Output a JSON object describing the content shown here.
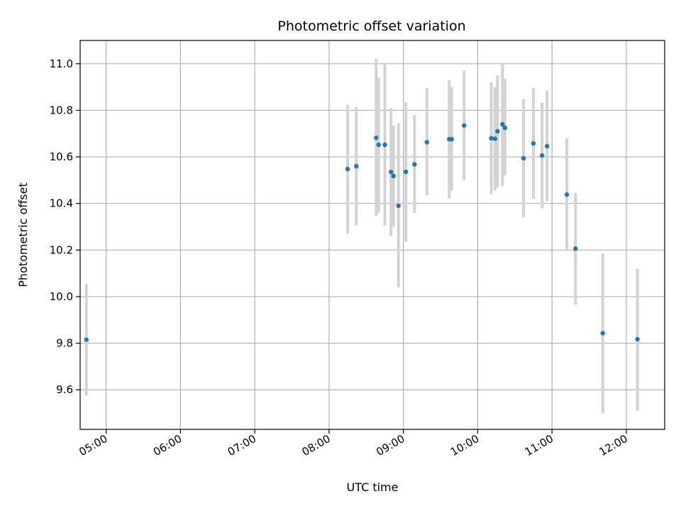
{
  "chart_data": {
    "type": "scatter",
    "title": "Photometric offset variation",
    "xlabel": "UTC time",
    "ylabel": "Photometric offset",
    "grid": true,
    "x_axis_kind": "time-of-day",
    "xlim": [
      "04:39",
      "12:31"
    ],
    "ylim": [
      9.43,
      11.1
    ],
    "x_ticks": [
      "05:00",
      "06:00",
      "07:00",
      "08:00",
      "09:00",
      "10:00",
      "11:00",
      "12:00"
    ],
    "y_ticks": [
      "9.6",
      "9.8",
      "10.0",
      "10.2",
      "10.4",
      "10.6",
      "10.8",
      "11.0"
    ],
    "colors": {
      "point": "#1f77b4",
      "error_bar": "#d3d3d3",
      "grid": "#b0b0b0"
    },
    "series": [
      {
        "points": [
          {
            "x": "04:44",
            "y": 9.815,
            "lo": 9.575,
            "hi": 10.055
          },
          {
            "x": "08:15",
            "y": 10.548,
            "lo": 10.27,
            "hi": 10.825
          },
          {
            "x": "08:22",
            "y": 10.56,
            "lo": 10.305,
            "hi": 10.815
          },
          {
            "x": "08:38",
            "y": 10.682,
            "lo": 10.345,
            "hi": 11.022
          },
          {
            "x": "08:40",
            "y": 10.652,
            "lo": 10.36,
            "hi": 10.94
          },
          {
            "x": "08:45",
            "y": 10.652,
            "lo": 10.305,
            "hi": 11.0
          },
          {
            "x": "08:50",
            "y": 10.535,
            "lo": 10.26,
            "hi": 10.81
          },
          {
            "x": "08:52",
            "y": 10.518,
            "lo": 10.3,
            "hi": 10.735
          },
          {
            "x": "08:56",
            "y": 10.39,
            "lo": 10.04,
            "hi": 10.745
          },
          {
            "x": "09:02",
            "y": 10.536,
            "lo": 10.235,
            "hi": 10.835
          },
          {
            "x": "09:09",
            "y": 10.568,
            "lo": 10.36,
            "hi": 10.78
          },
          {
            "x": "09:19",
            "y": 10.663,
            "lo": 10.435,
            "hi": 10.895
          },
          {
            "x": "09:37",
            "y": 10.676,
            "lo": 10.42,
            "hi": 10.93
          },
          {
            "x": "09:39",
            "y": 10.676,
            "lo": 10.455,
            "hi": 10.9
          },
          {
            "x": "09:49",
            "y": 10.735,
            "lo": 10.5,
            "hi": 10.97
          },
          {
            "x": "10:11",
            "y": 10.68,
            "lo": 10.44,
            "hi": 10.92
          },
          {
            "x": "10:14",
            "y": 10.678,
            "lo": 10.455,
            "hi": 10.9
          },
          {
            "x": "10:16",
            "y": 10.71,
            "lo": 10.47,
            "hi": 10.95
          },
          {
            "x": "10:20",
            "y": 10.74,
            "lo": 10.475,
            "hi": 11.005
          },
          {
            "x": "10:22",
            "y": 10.725,
            "lo": 10.52,
            "hi": 10.935
          },
          {
            "x": "10:37",
            "y": 10.594,
            "lo": 10.34,
            "hi": 10.848
          },
          {
            "x": "10:45",
            "y": 10.658,
            "lo": 10.42,
            "hi": 10.895
          },
          {
            "x": "10:52",
            "y": 10.606,
            "lo": 10.38,
            "hi": 10.832
          },
          {
            "x": "10:56",
            "y": 10.646,
            "lo": 10.41,
            "hi": 10.885
          },
          {
            "x": "11:12",
            "y": 10.438,
            "lo": 10.195,
            "hi": 10.68
          },
          {
            "x": "11:19",
            "y": 10.206,
            "lo": 9.965,
            "hi": 10.445
          },
          {
            "x": "11:41",
            "y": 9.843,
            "lo": 9.5,
            "hi": 10.185
          },
          {
            "x": "12:09",
            "y": 9.817,
            "lo": 9.51,
            "hi": 10.12
          }
        ]
      }
    ]
  }
}
